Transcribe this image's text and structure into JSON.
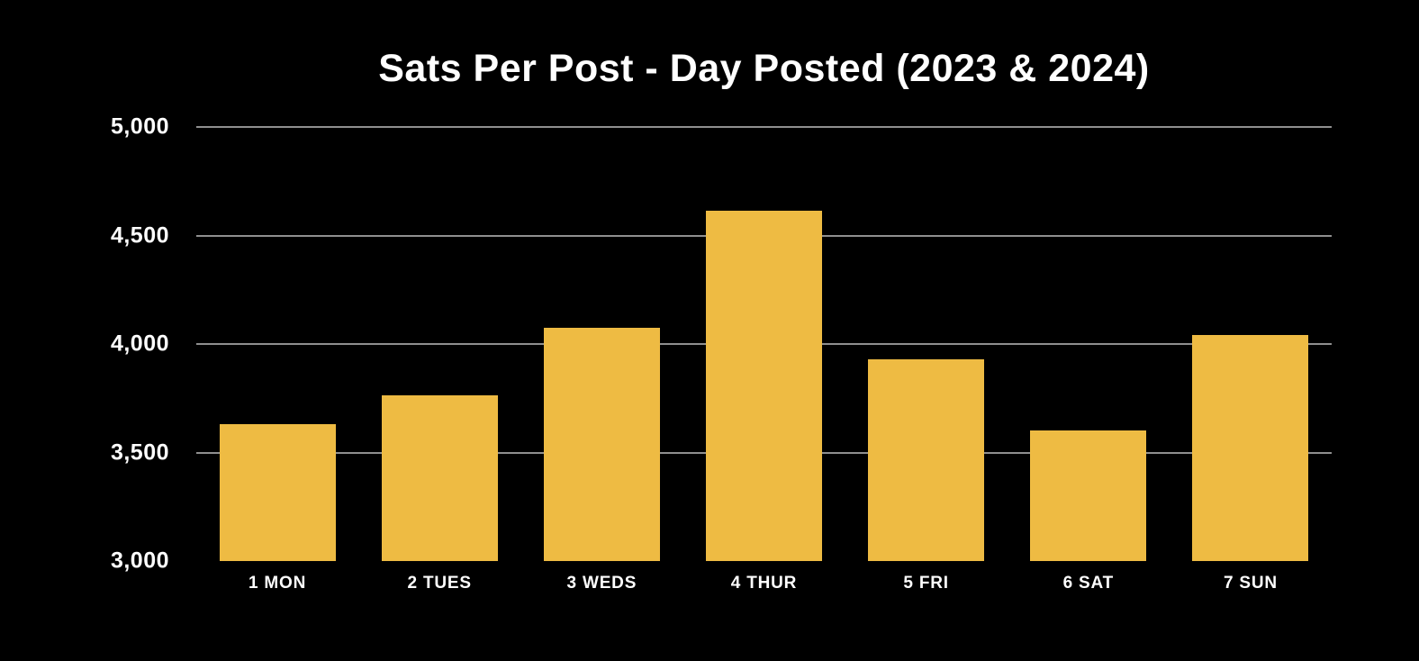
{
  "chart_data": {
    "type": "bar",
    "title": "Sats Per Post - Day Posted (2023 & 2024)",
    "categories": [
      "1 MON",
      "2 TUES",
      "3 WEDS",
      "4 THUR",
      "5 FRI",
      "6 SAT",
      "7 SUN"
    ],
    "values": [
      3630,
      3765,
      4075,
      4615,
      3930,
      3600,
      4040
    ],
    "xlabel": "",
    "ylabel": "",
    "ylim": [
      3000,
      5000
    ],
    "yticks": [
      3000,
      3500,
      4000,
      4500,
      5000
    ],
    "ytick_labels": [
      "3,000",
      "3,500",
      "4,000",
      "4,500",
      "5,000"
    ],
    "grid": "horizontal gridlines at 3500/4000/4500/5000, none at baseline 3000, drawn behind bars",
    "legend_position": "none",
    "colors": {
      "background": "#000000",
      "bar": "#EEBB43",
      "gridline": "#8F8F8F",
      "text": "#FFFFFF"
    }
  }
}
